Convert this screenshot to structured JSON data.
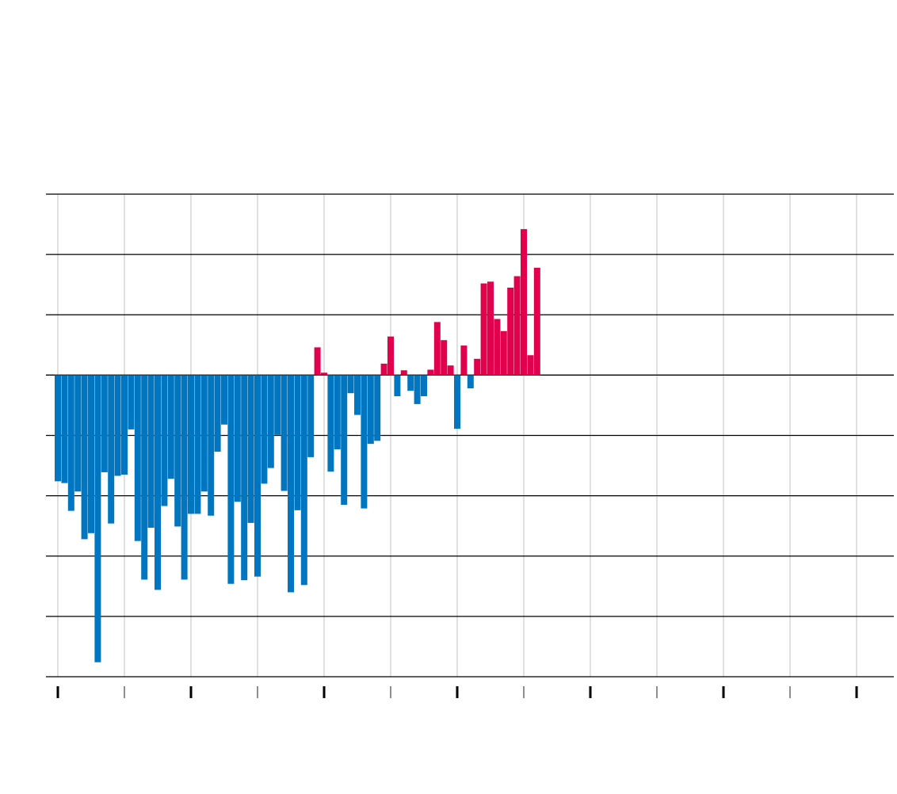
{
  "chart_data": {
    "type": "bar",
    "title": "",
    "xlabel": "",
    "ylabel": "",
    "grid": true,
    "positive_color": "#e2004d",
    "negative_color": "#0076c0",
    "ylim": [
      -0.5,
      0.3
    ],
    "xlim": [
      1900,
      2024
    ],
    "x": [
      1901,
      1902,
      1903,
      1904,
      1905,
      1906,
      1907,
      1908,
      1909,
      1910,
      1911,
      1912,
      1913,
      1914,
      1915,
      1916,
      1917,
      1918,
      1919,
      1920,
      1921,
      1922,
      1923,
      1924,
      1925,
      1926,
      1927,
      1928,
      1929,
      1930,
      1931,
      1932,
      1933,
      1934,
      1935,
      1936,
      1937,
      1938,
      1939,
      1940,
      1941,
      1942,
      1943,
      1944,
      1945,
      1946,
      1947,
      1948,
      1949,
      1950,
      1951,
      1952,
      1953,
      1954,
      1955,
      1956,
      1957,
      1958,
      1959,
      1960,
      1961,
      1962,
      1963,
      1964,
      1965,
      1966,
      1967,
      1968,
      1969,
      1970,
      1971,
      1972,
      1973
    ],
    "values": [
      -0.176,
      -0.179,
      -0.225,
      -0.193,
      -0.272,
      -0.262,
      -0.476,
      -0.161,
      -0.246,
      -0.167,
      -0.165,
      -0.09,
      -0.275,
      -0.339,
      -0.253,
      -0.356,
      -0.217,
      -0.172,
      -0.251,
      -0.339,
      -0.23,
      -0.23,
      -0.193,
      -0.233,
      -0.127,
      -0.082,
      -0.346,
      -0.21,
      -0.34,
      -0.245,
      -0.334,
      -0.18,
      -0.154,
      -0.099,
      -0.192,
      -0.36,
      -0.224,
      -0.348,
      -0.136,
      0.046,
      0.004,
      -0.16,
      -0.123,
      -0.215,
      -0.03,
      -0.066,
      -0.221,
      -0.114,
      -0.109,
      0.019,
      0.064,
      -0.035,
      0.008,
      -0.026,
      -0.048,
      -0.035,
      0.009,
      0.088,
      0.058,
      0.016,
      -0.089,
      0.049,
      -0.022,
      0.027,
      0.152,
      0.155,
      0.093,
      0.073,
      0.145,
      0.164,
      0.242,
      0.033,
      0.178
    ]
  }
}
